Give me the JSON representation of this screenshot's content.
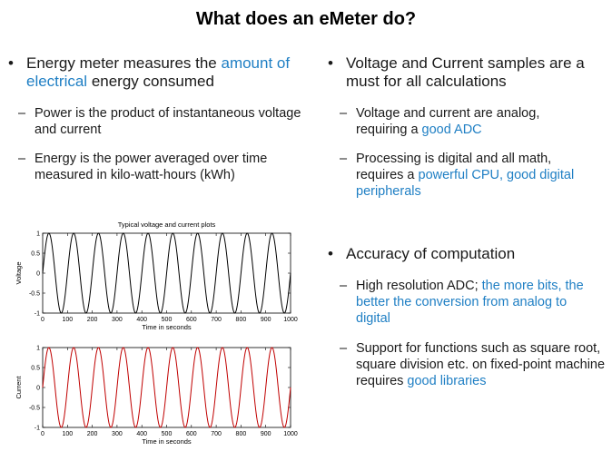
{
  "slide": {
    "title": "What does an eMeter do?",
    "left": {
      "bullet1": {
        "pre": "Energy meter measures the ",
        "hl": "amount of electrical",
        "post": " energy consumed"
      },
      "sub1": "Power is the product of instantaneous voltage and current",
      "sub2": "Energy is the power averaged over time measured in kilo-watt-hours (kWh)"
    },
    "right": {
      "bullet1": "Voltage and Current samples are a must for all calculations",
      "sub1": {
        "pre": "Voltage and current are analog, requiring a ",
        "hl": "good ADC"
      },
      "sub2": {
        "pre": "Processing is digital and all math, requires a ",
        "hl": "powerful CPU, good digital peripherals"
      },
      "bullet2": "Accuracy of computation",
      "sub3": {
        "pre": "High resolution ADC; ",
        "hl": "the more bits, the better the conversion from analog to digital"
      },
      "sub4": {
        "pre": "Support for functions such as square root, square division etc. on fixed-point machine requires ",
        "hl": "good libraries"
      }
    },
    "markers": {
      "bullet": "•",
      "dash": "–"
    },
    "highlight_color": "#1f7fc4"
  },
  "chart_data": [
    {
      "type": "line",
      "title": "Typical voltage and current plots",
      "xlabel": "Time in seconds",
      "ylabel": "Voltage",
      "xlim": [
        0,
        1000
      ],
      "ylim": [
        -1,
        1
      ],
      "xticks": [
        "0",
        "100",
        "200",
        "300",
        "400",
        "500",
        "600",
        "700",
        "800",
        "900",
        "1000"
      ],
      "yticks": [
        "1",
        "0.5",
        "0",
        "-0.5",
        "-1"
      ],
      "series": [
        {
          "function": "sin",
          "cycles": 10,
          "amplitude": 1,
          "color": "#000000"
        }
      ]
    },
    {
      "type": "line",
      "title": "",
      "xlabel": "Time in seconds",
      "ylabel": "Current",
      "xlim": [
        0,
        1000
      ],
      "ylim": [
        -1,
        1
      ],
      "xticks": [
        "0",
        "100",
        "200",
        "300",
        "400",
        "500",
        "600",
        "700",
        "800",
        "900",
        "1000"
      ],
      "yticks": [
        "1",
        "0.5",
        "0",
        "-0.5",
        "-1"
      ],
      "series": [
        {
          "function": "sin",
          "cycles": 10,
          "amplitude": 1,
          "color": "#c00000"
        }
      ]
    }
  ]
}
